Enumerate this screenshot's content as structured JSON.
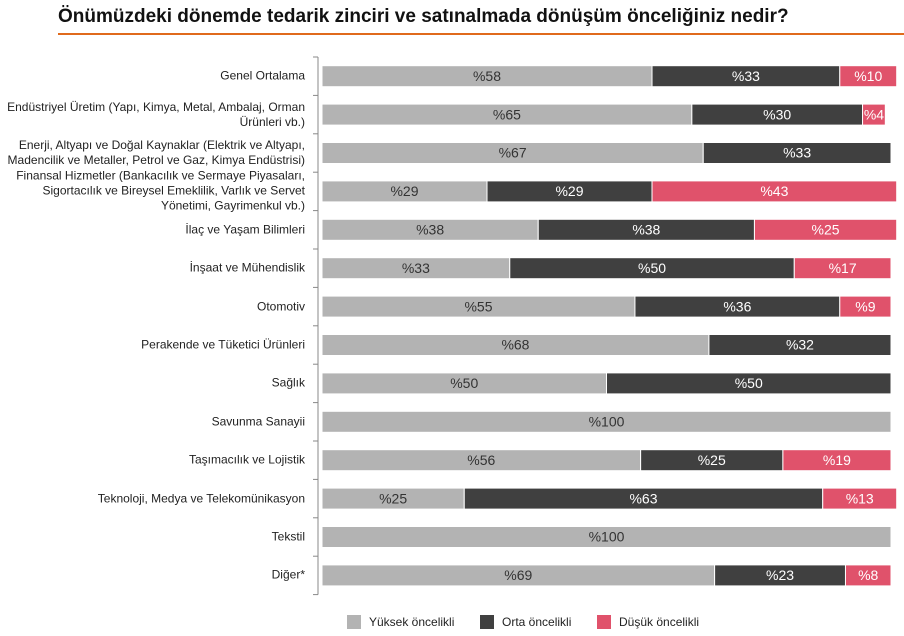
{
  "chart_data": {
    "type": "stacked-barh",
    "title": "Önümüzdeki dönemde tedarik zinciri ve satınalmada dönüşüm önceliğiniz nedir?",
    "categories": [
      "Genel Ortalama",
      "Endüstriyel Üretim (Yapı, Kimya, Metal, Ambalaj, Orman Ürünleri vb.)",
      "Enerji, Altyapı ve Doğal Kaynaklar (Elektrik ve Altyapı, Madencilik ve Metaller, Petrol ve Gaz, Kimya Endüstrisi)",
      "Finansal Hizmetler (Bankacılık ve Sermaye Piyasaları, Sigortacılık ve Bireysel Emeklilik, Varlık ve Servet Yönetimi, Gayrimenkul vb.)",
      "İlaç ve Yaşam Bilimleri",
      "İnşaat ve Mühendislik",
      "Otomotiv",
      "Perakende ve Tüketici Ürünleri",
      "Sağlık",
      "Savunma Sanayii",
      "Taşımacılık ve Lojistik",
      "Teknoloji, Medya ve Telekomünikasyon",
      "Tekstil",
      "Diğer*"
    ],
    "series": [
      {
        "name": "Yüksek öncelikli",
        "color": "#b3b3b3",
        "values": [
          58,
          65,
          67,
          29,
          38,
          33,
          55,
          68,
          50,
          100,
          56,
          25,
          100,
          69
        ],
        "value_labels": [
          "%58",
          "%65",
          "%67",
          "%29",
          "%38",
          "%33",
          "%55",
          "%68",
          "%50",
          "%100",
          "%56",
          "%25",
          "%100",
          "%69"
        ]
      },
      {
        "name": "Orta öncelikli",
        "color": "#404040",
        "values": [
          33,
          30,
          33,
          29,
          38,
          50,
          36,
          32,
          50,
          null,
          25,
          63,
          null,
          23
        ],
        "value_labels": [
          "%33",
          "%30",
          "%33",
          "%29",
          "%38",
          "%50",
          "%36",
          "%32",
          "%50",
          null,
          "%25",
          "%63",
          null,
          "%23"
        ]
      },
      {
        "name": "Düşük öncelikli",
        "color": "#e0526b",
        "values": [
          10,
          4,
          null,
          43,
          25,
          17,
          9,
          null,
          null,
          null,
          19,
          13,
          null,
          8
        ],
        "value_labels": [
          "%10",
          "%4",
          null,
          "%43",
          "%25",
          "%17",
          "%9",
          null,
          null,
          null,
          "%19",
          "%13",
          null,
          "%8"
        ]
      }
    ],
    "xlim": [
      0,
      100
    ]
  }
}
